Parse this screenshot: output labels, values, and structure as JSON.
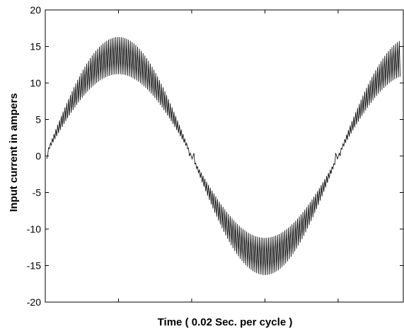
{
  "chart_data": {
    "type": "line",
    "title": "",
    "xlabel": "Time ( 0.02 Sec. per cycle )",
    "ylabel": "Input current in ampers",
    "ylim": [
      -20,
      20
    ],
    "yticks": [
      20,
      15,
      10,
      5,
      0,
      -5,
      -10,
      -15,
      -20
    ],
    "xlim": [
      0,
      0.0245
    ],
    "x_ticks": [
      0.005,
      0.01,
      0.015,
      0.02
    ],
    "x_tick_labels_shown": false,
    "grid": false,
    "series": [
      {
        "description_hidden": true,
        "fundamental_frequency_hz": 50,
        "envelope_upper_peak": 16.3,
        "envelope_lower_peak": 11.2,
        "switching_cycles": 195,
        "color": "#000000"
      }
    ]
  }
}
